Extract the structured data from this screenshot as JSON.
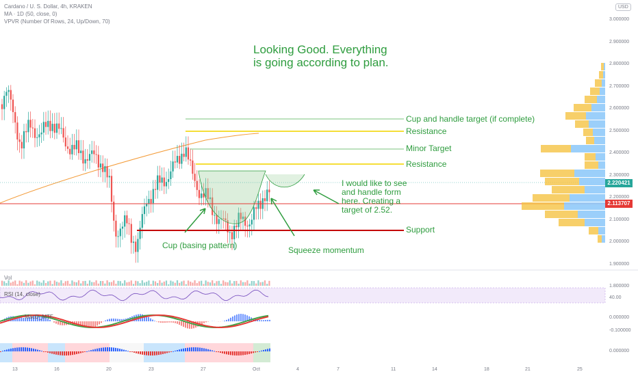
{
  "header": {
    "symbol": "Cardano / U. S. Dollar, 4h, KRAKEN",
    "ma": "MA · 1D (50, close, 0)",
    "vpvr": "VPVR (Number Of Rows, 24, Up/Down, 70)",
    "currency": "USD"
  },
  "chart_data": {
    "type": "candlestick",
    "title": "Cardano / U. S. Dollar, 4h, KRAKEN",
    "x_ticks": [
      "13",
      "16",
      "20",
      "23",
      "27",
      "Oct",
      "4",
      "7",
      "11",
      "14",
      "18",
      "21",
      "25"
    ],
    "y_ticks": [
      "3.000000",
      "2.900000",
      "2.800000",
      "2.700000",
      "2.600000",
      "2.500000",
      "2.400000",
      "2.300000",
      "2.200000",
      "2.100000",
      "2.000000",
      "1.900000",
      "1.800000"
    ],
    "price_now": "2.220421",
    "support_level": "2.113707",
    "levels": [
      {
        "name": "Cup and handle target (if complete)",
        "value": 2.52
      },
      {
        "name": "Resistance",
        "value": 2.46
      },
      {
        "name": "Minor Target",
        "value": 2.37
      },
      {
        "name": "Resistance",
        "value": 2.31
      },
      {
        "name": "Support",
        "value": 1.98
      }
    ],
    "rsi_label": "RSI (14, close)",
    "rsi_tick": "40.00",
    "macd_label": "MacD_MTF",
    "macd_ticks": [
      "0.000000",
      "-0.100000"
    ],
    "squeeze_tick": "0.000000"
  },
  "annotations": {
    "headline_1": "Looking Good. Everything",
    "headline_2": "is going according to plan.",
    "cup": "Cup (basing pattern)",
    "squeeze": "Squeeze momentum",
    "note_1": "I would like to see",
    "note_2": "and handle form",
    "note_3": "here. Creating a",
    "note_4": "target of 2.52."
  },
  "vol_label": "Vol",
  "colors": {
    "up": "#26a69a",
    "down": "#ef5350",
    "annotation": "#2e9c3e",
    "resistance": "#f5de37",
    "support": "#c40000",
    "ma": "#f39b38",
    "price_tag": "#26a69a",
    "support_tag": "#e53935"
  }
}
